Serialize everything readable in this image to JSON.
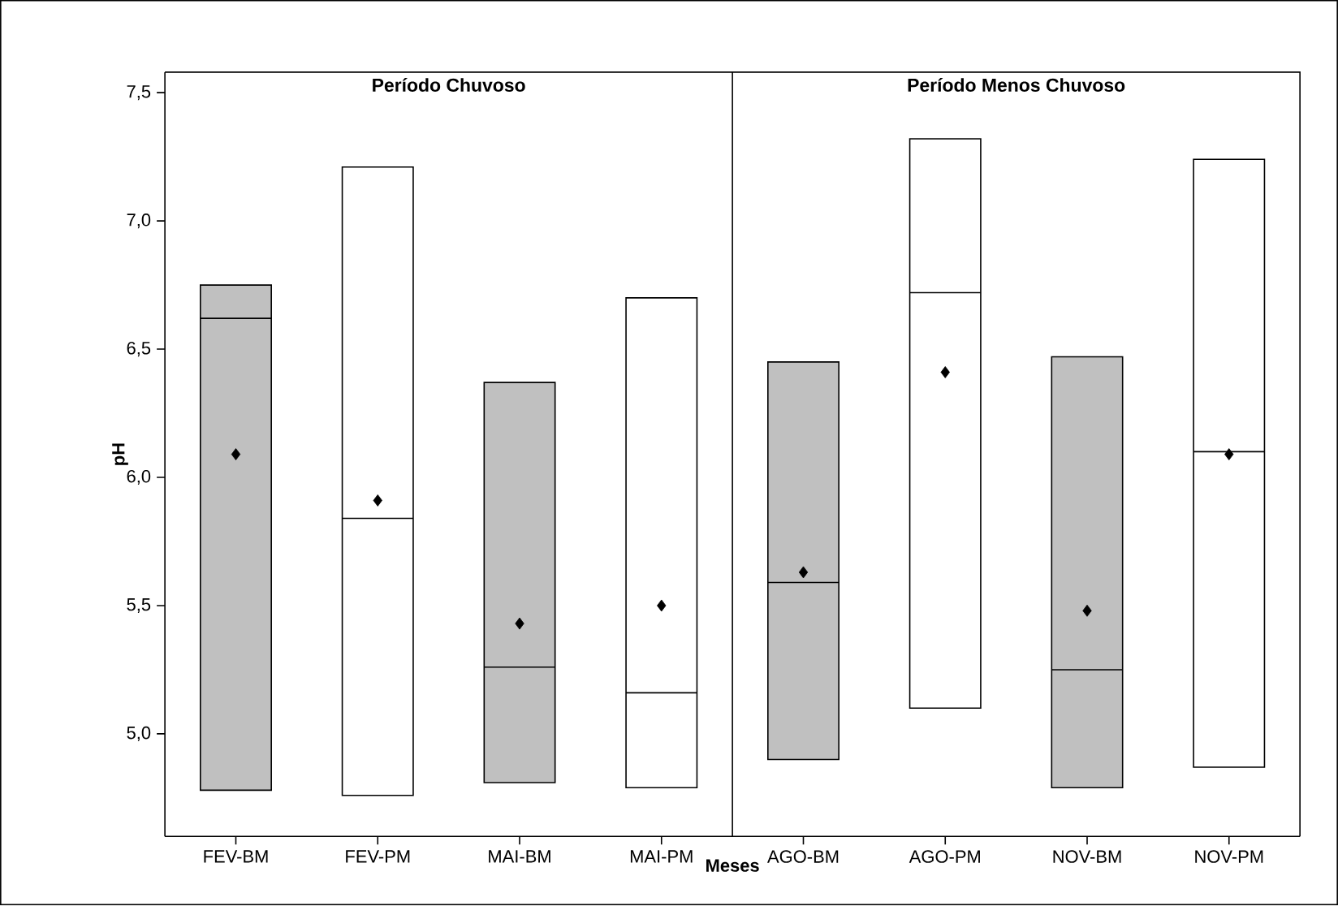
{
  "chart_data": {
    "type": "box",
    "categories": [
      "FEV-BM",
      "FEV-PM",
      "MAI-BM",
      "MAI-PM",
      "AGO-BM",
      "AGO-PM",
      "NOV-BM",
      "NOV-PM"
    ],
    "xlabel": "Meses",
    "ylabel": "pH",
    "annotations": [
      "Período Chuvoso",
      "Período Menos Chuvoso"
    ],
    "ylim": [
      4.6,
      7.58
    ],
    "yticks": [
      {
        "value": 5,
        "label": "5,0"
      },
      {
        "value": 5.5,
        "label": "5,5"
      },
      {
        "value": 6,
        "label": "6,0"
      },
      {
        "value": 6.5,
        "label": "6,5"
      },
      {
        "value": 7,
        "label": "7,0"
      },
      {
        "value": 7.5,
        "label": "7,5"
      }
    ],
    "series": [
      {
        "colors": [
          "#c0c0c0",
          "#ffffff",
          "#c0c0c0",
          "#ffffff",
          "#c0c0c0",
          "#ffffff",
          "#c0c0c0",
          "#ffffff"
        ],
        "boxes": [
          {
            "low": 4.78,
            "q1": 4.78,
            "median": 6.62,
            "q3": 6.75,
            "high": 6.75
          },
          {
            "low": 4.76,
            "q1": 4.76,
            "median": 5.84,
            "q3": 7.21,
            "high": 7.21
          },
          {
            "low": 4.81,
            "q1": 4.81,
            "median": 5.26,
            "q3": 6.37,
            "high": 6.37
          },
          {
            "low": 4.79,
            "q1": 4.79,
            "median": 5.16,
            "q3": 6.7,
            "high": 6.7
          },
          {
            "low": 4.9,
            "q1": 4.9,
            "median": 5.59,
            "q3": 6.45,
            "high": 6.45
          },
          {
            "low": 5.1,
            "q1": 5.1,
            "median": 6.72,
            "q3": 7.32,
            "high": 7.32
          },
          {
            "low": 4.79,
            "q1": 4.79,
            "median": 5.25,
            "q3": 6.47,
            "high": 6.47
          },
          {
            "low": 4.87,
            "q1": 4.87,
            "median": 6.1,
            "q3": 7.24,
            "high": 7.24
          }
        ]
      },
      {
        "type": "scatter",
        "marker": "diamond",
        "color": "#000000",
        "x": [
          "FEV-BM",
          "FEV-PM",
          "MAI-BM",
          "MAI-PM",
          "AGO-BM",
          "AGO-PM",
          "NOV-BM",
          "NOV-PM"
        ],
        "values": [
          6.09,
          5.91,
          5.43,
          5.5,
          5.63,
          6.41,
          5.48,
          6.09
        ]
      }
    ]
  }
}
